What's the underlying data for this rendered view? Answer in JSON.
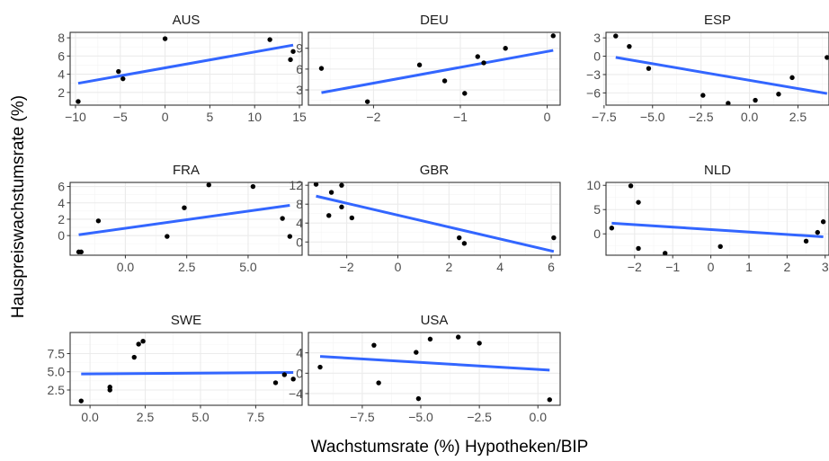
{
  "chart_data": {
    "type": "scatter",
    "xlabel": "Wachstumsrate (%) Hypotheken/BIP",
    "ylabel": "Hauspreiswachstumsrate (%)",
    "colors": {
      "fit_line": "#3366ff",
      "points": "#000000",
      "grid_major": "#ebebeb",
      "grid_minor": "#f4f4f4",
      "panel_border": "#333333"
    },
    "grid": true,
    "panels": [
      {
        "title": "AUS",
        "xlim": [
          -10.6,
          15.3
        ],
        "ylim": [
          0.6,
          8.6
        ],
        "xticks": [
          -10,
          -5,
          0,
          5,
          10,
          15
        ],
        "xtick_labels": [
          "−10",
          "−5",
          "0",
          "5",
          "10",
          "15"
        ],
        "yticks": [
          2,
          4,
          6,
          8
        ],
        "ytick_labels": [
          "2",
          "4",
          "6",
          "8"
        ],
        "points": [
          [
            -9.7,
            1.0
          ],
          [
            -5.2,
            4.3
          ],
          [
            -4.7,
            3.5
          ],
          [
            0.0,
            7.9
          ],
          [
            11.7,
            7.8
          ],
          [
            14.0,
            5.6
          ],
          [
            14.3,
            6.5
          ]
        ],
        "fit": [
          [
            -9.7,
            3.0
          ],
          [
            14.3,
            7.2
          ]
        ]
      },
      {
        "title": "DEU",
        "xlim": [
          -2.75,
          0.15
        ],
        "ylim": [
          0.8,
          11.3
        ],
        "xticks": [
          -2,
          -1,
          0
        ],
        "xtick_labels": [
          "−2",
          "−1",
          "0"
        ],
        "yticks": [
          3,
          6,
          9
        ],
        "ytick_labels": [
          "3",
          "6",
          "9"
        ],
        "points": [
          [
            -2.6,
            6.1
          ],
          [
            -2.07,
            1.3
          ],
          [
            -1.47,
            6.6
          ],
          [
            -1.18,
            4.3
          ],
          [
            -0.95,
            2.5
          ],
          [
            -0.8,
            7.8
          ],
          [
            -0.73,
            6.9
          ],
          [
            -0.48,
            9.0
          ],
          [
            0.07,
            10.8
          ]
        ],
        "fit": [
          [
            -2.6,
            2.6
          ],
          [
            0.07,
            8.7
          ]
        ]
      },
      {
        "title": "ESP",
        "xlim": [
          -7.4,
          4.1
        ],
        "ylim": [
          -8.0,
          3.9
        ],
        "xticks": [
          -7.5,
          -5.0,
          -2.5,
          0.0,
          2.5
        ],
        "xtick_labels": [
          "−7.5",
          "−5.0",
          "−2.5",
          "0.0",
          "2.5"
        ],
        "yticks": [
          -6,
          -3,
          0,
          3
        ],
        "ytick_labels": [
          "−6",
          "−3",
          "0",
          "3"
        ],
        "points": [
          [
            -6.9,
            3.3
          ],
          [
            -6.2,
            1.6
          ],
          [
            -5.2,
            -2.0
          ],
          [
            -2.4,
            -6.4
          ],
          [
            -1.1,
            -7.7
          ],
          [
            0.3,
            -7.2
          ],
          [
            1.5,
            -6.2
          ],
          [
            2.2,
            -3.5
          ],
          [
            4.0,
            -0.2
          ]
        ],
        "fit": [
          [
            -6.9,
            -0.2
          ],
          [
            4.0,
            -6.1
          ]
        ]
      },
      {
        "title": "FRA",
        "xlim": [
          -2.25,
          7.2
        ],
        "ylim": [
          -2.4,
          6.5
        ],
        "xticks": [
          0.0,
          2.5,
          5.0
        ],
        "xtick_labels": [
          "0.0",
          "2.5",
          "5.0"
        ],
        "yticks": [
          0,
          2,
          4,
          6
        ],
        "ytick_labels": [
          "0",
          "2",
          "4",
          "6"
        ],
        "points": [
          [
            -1.9,
            -2.0
          ],
          [
            -1.8,
            -2.0
          ],
          [
            -1.1,
            1.8
          ],
          [
            1.7,
            -0.1
          ],
          [
            2.4,
            3.4
          ],
          [
            3.4,
            6.2
          ],
          [
            5.2,
            6.0
          ],
          [
            6.4,
            2.1
          ],
          [
            6.7,
            -0.1
          ]
        ],
        "fit": [
          [
            -1.9,
            0.1
          ],
          [
            6.7,
            3.7
          ]
        ]
      },
      {
        "title": "GBR",
        "xlim": [
          -3.5,
          6.35
        ],
        "ylim": [
          -2.8,
          12.6
        ],
        "xticks": [
          -2,
          0,
          2,
          4,
          6
        ],
        "xtick_labels": [
          "−2",
          "0",
          "2",
          "4",
          "6"
        ],
        "yticks": [
          0,
          4,
          8,
          12
        ],
        "ytick_labels": [
          "0",
          "4",
          "8",
          "12"
        ],
        "points": [
          [
            -3.2,
            12.2
          ],
          [
            -2.6,
            10.5
          ],
          [
            -2.2,
            12.0
          ],
          [
            -2.2,
            7.4
          ],
          [
            -2.7,
            5.6
          ],
          [
            -1.8,
            5.1
          ],
          [
            2.4,
            0.9
          ],
          [
            2.6,
            -0.3
          ],
          [
            6.1,
            0.9
          ]
        ],
        "fit": [
          [
            -3.2,
            9.7
          ],
          [
            6.1,
            -2.0
          ]
        ]
      },
      {
        "title": "NLD",
        "xlim": [
          -2.75,
          3.1
        ],
        "ylim": [
          -4.4,
          10.6
        ],
        "xticks": [
          -2,
          -1,
          0,
          1,
          2,
          3
        ],
        "xtick_labels": [
          "−2",
          "−1",
          "0",
          "1",
          "2",
          "3"
        ],
        "yticks": [
          0,
          5,
          10
        ],
        "ytick_labels": [
          "0",
          "5",
          "10"
        ],
        "points": [
          [
            -2.6,
            1.2
          ],
          [
            -2.1,
            9.9
          ],
          [
            -1.9,
            6.5
          ],
          [
            -1.9,
            -3.0
          ],
          [
            -1.2,
            -4.0
          ],
          [
            0.25,
            -2.6
          ],
          [
            2.5,
            -1.5
          ],
          [
            2.8,
            0.3
          ],
          [
            2.95,
            2.5
          ]
        ],
        "fit": [
          [
            -2.6,
            2.2
          ],
          [
            2.95,
            -0.6
          ]
        ]
      },
      {
        "title": "SWE",
        "xlim": [
          -0.9,
          9.6
        ],
        "ylim": [
          0.4,
          10.4
        ],
        "xticks": [
          0.0,
          2.5,
          5.0,
          7.5
        ],
        "xtick_labels": [
          "0.0",
          "2.5",
          "5.0",
          "7.5"
        ],
        "yticks": [
          2.5,
          5.0,
          7.5
        ],
        "ytick_labels": [
          "2.5",
          "5.0",
          "7.5"
        ],
        "points": [
          [
            -0.4,
            1.0
          ],
          [
            0.9,
            2.5
          ],
          [
            0.9,
            2.9
          ],
          [
            2.0,
            7.0
          ],
          [
            2.2,
            8.8
          ],
          [
            2.4,
            9.2
          ],
          [
            8.4,
            3.5
          ],
          [
            8.8,
            4.6
          ],
          [
            9.2,
            4.0
          ]
        ],
        "fit": [
          [
            -0.4,
            4.7
          ],
          [
            9.2,
            4.9
          ]
        ]
      },
      {
        "title": "USA",
        "xlim": [
          -9.8,
          0.95
        ],
        "ylim": [
          -6.3,
          8.0
        ],
        "xticks": [
          -7.5,
          -5.0,
          -2.5,
          0.0
        ],
        "xtick_labels": [
          "−7.5",
          "−5.0",
          "−2.5",
          "0.0"
        ],
        "yticks": [
          -4,
          0,
          4
        ],
        "ytick_labels": [
          "−4",
          "0",
          "4"
        ],
        "points": [
          [
            -9.3,
            1.2
          ],
          [
            -7.0,
            5.5
          ],
          [
            -6.8,
            -1.9
          ],
          [
            -5.2,
            4.1
          ],
          [
            -5.1,
            -5.0
          ],
          [
            -4.6,
            6.7
          ],
          [
            -3.4,
            7.1
          ],
          [
            -2.5,
            5.9
          ],
          [
            0.5,
            -5.2
          ]
        ],
        "fit": [
          [
            -9.3,
            3.3
          ],
          [
            0.5,
            0.6
          ]
        ]
      }
    ]
  }
}
